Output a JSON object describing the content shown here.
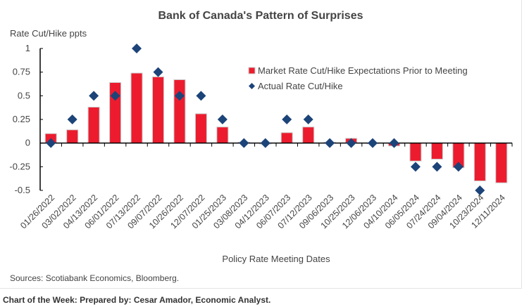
{
  "chart_data": {
    "type": "bar",
    "title": "Bank of Canada's Pattern of Surprises",
    "ylabel": "Rate Cut/Hike ppts",
    "xlabel": "Policy Rate Meeting Dates",
    "ylim": [
      -0.5,
      1
    ],
    "yticks": [
      1,
      0.75,
      0.5,
      0.25,
      0,
      -0.25,
      -0.5
    ],
    "ytick_labels": [
      "1",
      "0.75",
      "0.5",
      "0.25",
      "0",
      "-0.25",
      "-0.5"
    ],
    "categories": [
      "01/26/2022",
      "03/02/2022",
      "04/13/2022",
      "06/01/2022",
      "07/13/2022",
      "09/07/2022",
      "10/26/2022",
      "12/07/2022",
      "01/25/2023",
      "03/08/2023",
      "04/12/2023",
      "06/07/2023",
      "07/12/2023",
      "09/06/2023",
      "10/25/2023",
      "12/06/2023",
      "04/10/2024",
      "06/05/2024",
      "07/24/2024",
      "09/04/2024",
      "10/23/2024",
      "12/11/2024"
    ],
    "series": [
      {
        "name": "Market Rate Cut/Hike Expectations Prior to Meeting",
        "type": "bar",
        "color": "#ec1c2e",
        "values": [
          0.1,
          0.14,
          0.38,
          0.64,
          0.74,
          0.7,
          0.67,
          0.31,
          0.17,
          0.01,
          -0.01,
          0.11,
          0.17,
          0.01,
          0.05,
          0.0,
          -0.03,
          -0.19,
          -0.17,
          -0.26,
          -0.4,
          -0.42
        ]
      },
      {
        "name": "Actual Rate Cut/Hike",
        "type": "scatter",
        "marker": "diamond",
        "color": "#1c4479",
        "values": [
          0,
          0.25,
          0.5,
          0.5,
          1,
          0.75,
          0.5,
          0.5,
          0.25,
          0,
          0,
          0.25,
          0.25,
          0,
          0,
          0,
          0,
          -0.25,
          -0.25,
          -0.25,
          -0.5,
          null
        ]
      }
    ],
    "legend_position": "top-right",
    "grid": false,
    "source": "Sources: Scotiabank Economics, Bloomberg."
  },
  "footer": "Chart of the Week: Prepared by: Cesar Amador, Economic Analyst."
}
